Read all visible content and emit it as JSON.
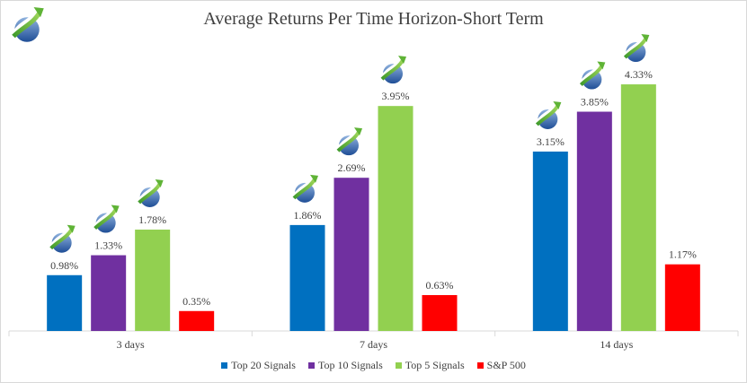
{
  "chart_data": {
    "type": "bar",
    "title": "Average Returns Per Time Horizon-Short Term",
    "categories": [
      "3 days",
      "7 days",
      "14 days"
    ],
    "series": [
      {
        "name": "Top 20 Signals",
        "values": [
          0.98,
          1.86,
          3.15
        ],
        "labels": [
          "0.98%",
          "1.86%",
          "3.15%"
        ],
        "color": "#0070c0"
      },
      {
        "name": "Top 10 Signals",
        "values": [
          1.33,
          2.69,
          3.85
        ],
        "labels": [
          "1.33%",
          "2.69%",
          "3.85%"
        ],
        "color": "#7030a0"
      },
      {
        "name": "Top 5 Signals",
        "values": [
          1.78,
          3.95,
          4.33
        ],
        "labels": [
          "1.78%",
          "3.95%",
          "4.33%"
        ],
        "color": "#92d050"
      },
      {
        "name": "S&P 500",
        "values": [
          0.35,
          0.63,
          1.17
        ],
        "labels": [
          "0.35%",
          "0.63%",
          "1.17%"
        ],
        "color": "#ff0000"
      }
    ],
    "logo_marker_on": [
      "Top 20 Signals",
      "Top 10 Signals",
      "Top 5 Signals"
    ],
    "ylim": [
      0,
      5
    ],
    "grid": false,
    "legend_position": "bottom"
  }
}
